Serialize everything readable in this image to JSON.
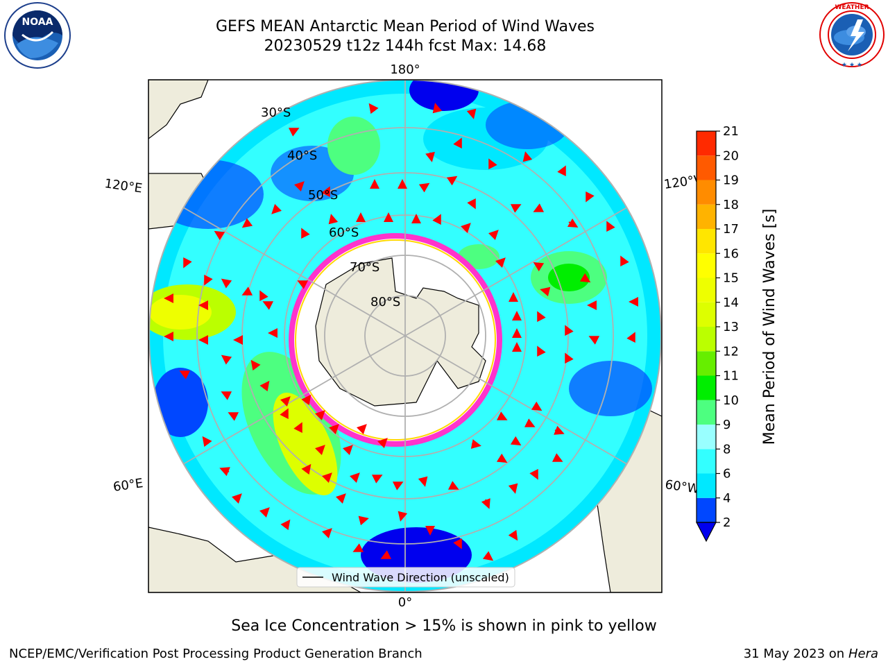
{
  "title": {
    "line1": "GEFS MEAN Antarctic Mean Period of Wind Waves",
    "line2": "20230529 t12z 144h fcst   Max: 14.68"
  },
  "map": {
    "projection": "south-polar-stereographic",
    "longitude_labels": {
      "top": "180°",
      "bottom": "0°",
      "upper_left": "120°E",
      "upper_right": "120°W",
      "lower_left": "60°E",
      "lower_right": "60°W"
    },
    "latitude_labels": [
      "30°S",
      "40°S",
      "50°S",
      "60°S",
      "70°S",
      "80°S"
    ],
    "legend_label": "Wind Wave Direction (unscaled)",
    "arrow_color": "#ff0000",
    "land_color": "#eeecdc",
    "ice_edge_colors": [
      "#ff33cc",
      "#ffd700"
    ]
  },
  "colorbar": {
    "label": "Mean Period of Wind Waves [s]",
    "ticks": [
      "2",
      "4",
      "6",
      "8",
      "9",
      "10",
      "11",
      "12",
      "13",
      "14",
      "15",
      "16",
      "17",
      "18",
      "19",
      "20",
      "21"
    ],
    "colors": [
      "#0047ff",
      "#00e8ff",
      "#33ffff",
      "#99ffff",
      "#4dff80",
      "#00ee00",
      "#66ee00",
      "#bbff00",
      "#ddff00",
      "#eeff00",
      "#ffff00",
      "#ffe600",
      "#ffb300",
      "#ff8c00",
      "#ff5a00",
      "#ff2a00"
    ],
    "under_color": "#0000ee"
  },
  "footnote": "Sea Ice Concentration > 15% is shown in pink to yellow",
  "credit": "NCEP/EMC/Verification Post Processing Product Generation Branch",
  "date": {
    "text": "31 May 2023 on",
    "machine": "Hera"
  },
  "logos": {
    "left": {
      "name": "noaa-logo",
      "text": "NOAA"
    },
    "right": {
      "name": "nws-logo",
      "text": "NATIONAL WEATHER SERVICE"
    }
  }
}
